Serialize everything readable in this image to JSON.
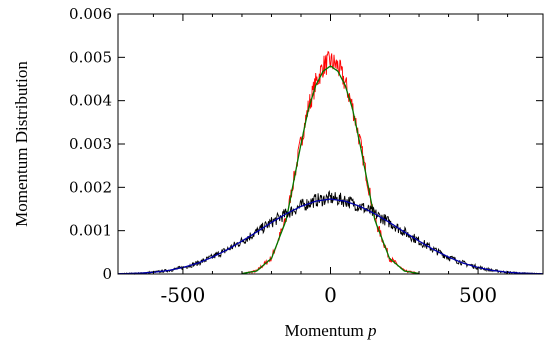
{
  "chart_data": {
    "type": "line",
    "title": "",
    "xlabel": "Momentum",
    "xlabel_symbol": "p",
    "ylabel": "Momentum Distribution",
    "xlim": [
      -720,
      720
    ],
    "ylim": [
      0,
      0.006
    ],
    "xticks": [
      -500,
      0,
      500
    ],
    "xtick_labels": [
      "-500",
      "0",
      "500"
    ],
    "yticks": [
      0,
      0.001,
      0.002,
      0.003,
      0.004,
      0.005,
      0.006
    ],
    "ytick_labels": [
      "0",
      "0.001",
      "0.002",
      "0.003",
      "0.004",
      "0.005",
      "0.006"
    ],
    "grid": false,
    "legend": "none",
    "series": [
      {
        "style": "noisy",
        "color": "#ff0000",
        "x": [
          -300,
          -250,
          -200,
          -150,
          -100,
          -75,
          -50,
          -25,
          0,
          25,
          50,
          75,
          100,
          150,
          200,
          250,
          300
        ],
        "y": [
          1e-05,
          7e-05,
          0.00037,
          0.00127,
          0.00305,
          0.00385,
          0.0044,
          0.0048,
          0.0049,
          0.0048,
          0.0044,
          0.00385,
          0.00305,
          0.00127,
          0.00037,
          7e-05,
          1e-05
        ]
      },
      {
        "style": "smooth",
        "color": "#007a00",
        "x": [
          -300,
          -250,
          -200,
          -150,
          -100,
          -75,
          -50,
          -25,
          0,
          25,
          50,
          75,
          100,
          150,
          200,
          250,
          300
        ],
        "y": [
          1e-05,
          7e-05,
          0.00036,
          0.00125,
          0.003,
          0.0038,
          0.00435,
          0.00468,
          0.0048,
          0.00468,
          0.00435,
          0.0038,
          0.003,
          0.00125,
          0.00036,
          7e-05,
          1e-05
        ]
      },
      {
        "style": "noisy",
        "color": "#000000",
        "x": [
          -720,
          -650,
          -600,
          -550,
          -500,
          -450,
          -400,
          -350,
          -300,
          -250,
          -200,
          -150,
          -100,
          -50,
          0,
          50,
          100,
          150,
          200,
          250,
          300,
          350,
          400,
          450,
          500,
          550,
          600,
          650,
          720
        ],
        "y": [
          5e-06,
          1.8e-05,
          4e-05,
          8e-05,
          0.00015,
          0.00025,
          0.00039,
          0.00056,
          0.00076,
          0.00097,
          0.00119,
          0.00139,
          0.00157,
          0.0017,
          0.00175,
          0.0017,
          0.00157,
          0.00139,
          0.00119,
          0.00097,
          0.00076,
          0.00056,
          0.00039,
          0.00025,
          0.00015,
          8e-05,
          4e-05,
          1.8e-05,
          5e-06
        ]
      },
      {
        "style": "smooth",
        "color": "#0000aa",
        "x": [
          -720,
          -650,
          -600,
          -550,
          -500,
          -450,
          -400,
          -350,
          -300,
          -250,
          -200,
          -150,
          -100,
          -50,
          0,
          50,
          100,
          150,
          200,
          250,
          300,
          350,
          400,
          450,
          500,
          550,
          600,
          650,
          720
        ],
        "y": [
          5e-06,
          1.8e-05,
          4e-05,
          8e-05,
          0.00015,
          0.00025,
          0.00039,
          0.00056,
          0.00076,
          0.00097,
          0.00119,
          0.00139,
          0.00156,
          0.00168,
          0.00173,
          0.00168,
          0.00156,
          0.00139,
          0.00119,
          0.00097,
          0.00076,
          0.00056,
          0.00039,
          0.00025,
          0.00015,
          8e-05,
          4e-05,
          1.8e-05,
          5e-06
        ]
      }
    ]
  }
}
